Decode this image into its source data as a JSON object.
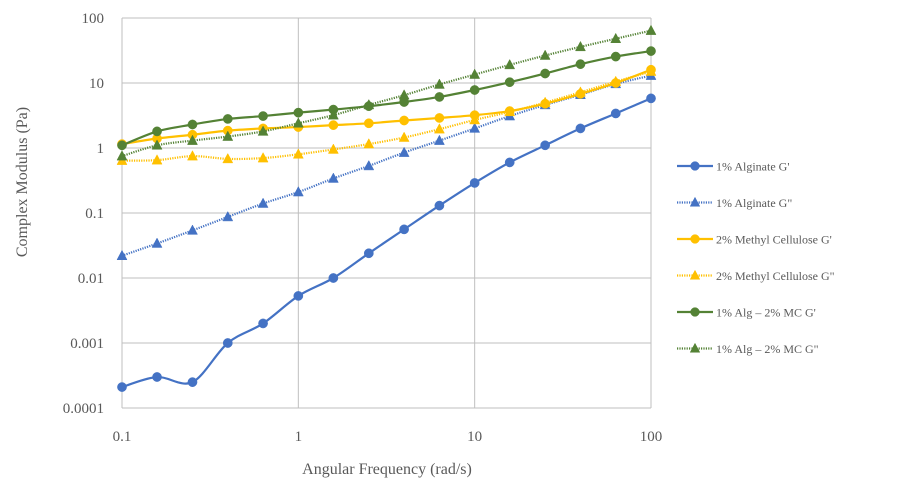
{
  "chart_data": {
    "type": "line",
    "title": "",
    "xlabel": "Angular Frequency (rad/s)",
    "ylabel": "Complex Modulus (Pa)",
    "x_scale": "log",
    "y_scale": "log",
    "xlim": [
      0.1,
      100
    ],
    "ylim": [
      0.0001,
      100
    ],
    "x_ticks": [
      "0.1",
      "1",
      "10",
      "100"
    ],
    "y_ticks": [
      "0.0001",
      "0.001",
      "0.01",
      "0.1",
      "1",
      "10",
      "100"
    ],
    "grid": true,
    "legend_position": "right",
    "x": [
      0.1,
      0.158,
      0.251,
      0.398,
      0.631,
      1,
      1.58,
      2.51,
      3.98,
      6.31,
      10,
      15.8,
      25.1,
      39.8,
      63.1,
      100
    ],
    "series": [
      {
        "name": "1% Alginate G'",
        "color": "#4472C4",
        "marker": "circle",
        "dash": "solid",
        "values": [
          0.00021,
          0.0003,
          0.00025,
          0.001,
          0.002,
          0.0053,
          0.01,
          0.024,
          0.056,
          0.13,
          0.29,
          0.6,
          1.1,
          2.0,
          3.4,
          5.8
        ]
      },
      {
        "name": "1% Alginate G\"",
        "color": "#4472C4",
        "marker": "triangle",
        "dash": "dotted",
        "values": [
          0.022,
          0.034,
          0.054,
          0.087,
          0.14,
          0.21,
          0.34,
          0.53,
          0.85,
          1.3,
          2.0,
          3.1,
          4.6,
          6.6,
          9.7,
          13
        ]
      },
      {
        "name": "2% Methyl Cellulose G'",
        "color": "#FFC000",
        "marker": "circle",
        "dash": "solid",
        "values": [
          1.15,
          1.4,
          1.6,
          1.85,
          2.0,
          2.1,
          2.25,
          2.4,
          2.65,
          2.9,
          3.2,
          3.7,
          4.8,
          6.8,
          10,
          16
        ]
      },
      {
        "name": "2% Methyl Cellulose G\"",
        "color": "#FFC000",
        "marker": "triangle",
        "dash": "dotted",
        "values": [
          0.64,
          0.65,
          0.75,
          0.68,
          0.7,
          0.8,
          0.95,
          1.15,
          1.45,
          1.95,
          2.7,
          3.6,
          5.0,
          7.2,
          10.5,
          15
        ]
      },
      {
        "name": "1% Alg – 2% MC G'",
        "color": "#548235",
        "marker": "circle",
        "dash": "solid",
        "values": [
          1.1,
          1.8,
          2.3,
          2.8,
          3.1,
          3.5,
          3.9,
          4.4,
          5.1,
          6.1,
          7.8,
          10.3,
          14,
          19.5,
          25.5,
          31
        ]
      },
      {
        "name": "1% Alg – 2% MC G\"",
        "color": "#548235",
        "marker": "triangle",
        "dash": "dotted",
        "values": [
          0.75,
          1.1,
          1.3,
          1.5,
          1.8,
          2.4,
          3.2,
          4.6,
          6.5,
          9.5,
          13.5,
          19,
          26.5,
          36,
          48,
          64
        ]
      }
    ]
  }
}
